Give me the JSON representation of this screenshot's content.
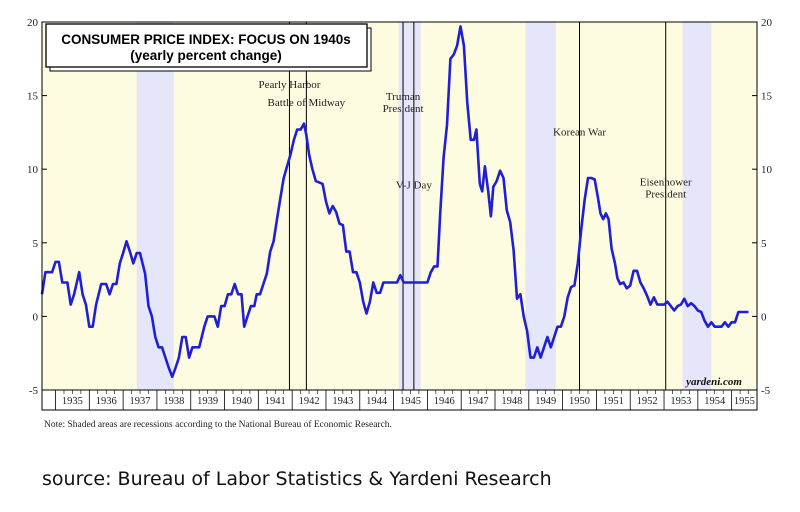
{
  "chart_data": {
    "type": "line",
    "title": "CONSUMER PRICE INDEX: FOCUS ON 1940s",
    "subtitle": "(yearly percent change)",
    "ylim": [
      -5,
      20
    ],
    "yticks": [
      -5,
      0,
      5,
      10,
      15,
      20
    ],
    "xlim": [
      1934.6,
      1955.75
    ],
    "years": [
      "1935",
      "1936",
      "1937",
      "1938",
      "1939",
      "1940",
      "1941",
      "1942",
      "1943",
      "1944",
      "1945",
      "1946",
      "1947",
      "1948",
      "1949",
      "1950",
      "1951",
      "1952",
      "1953",
      "1954",
      "1955"
    ],
    "recessions": [
      [
        1937.4,
        1938.5
      ],
      [
        1945.15,
        1945.8
      ],
      [
        1948.9,
        1949.8
      ],
      [
        1953.55,
        1954.4
      ]
    ],
    "events": [
      {
        "x": 1941.92,
        "lines": [
          "Pearly Harbor"
        ],
        "label_y": 15.5
      },
      {
        "x": 1942.42,
        "lines": [
          "Battle of Midway"
        ],
        "label_y": 14.3
      },
      {
        "x": 1945.28,
        "lines": [
          "Truman",
          "President"
        ],
        "label_y": 14.7
      },
      {
        "x": 1945.6,
        "lines": [
          "V-J Day"
        ],
        "label_y": 8.7
      },
      {
        "x": 1950.5,
        "lines": [
          "Korean War"
        ],
        "label_y": 12.3
      },
      {
        "x": 1953.05,
        "lines": [
          "Eisenhower",
          "President"
        ],
        "label_y": 8.9
      }
    ],
    "series": [
      {
        "color": "#1f1fd6",
        "points": [
          [
            1934.6,
            1.5
          ],
          [
            1934.7,
            3.0
          ],
          [
            1934.9,
            3.0
          ],
          [
            1935.0,
            3.7
          ],
          [
            1935.1,
            3.7
          ],
          [
            1935.2,
            2.3
          ],
          [
            1935.35,
            2.3
          ],
          [
            1935.45,
            0.8
          ],
          [
            1935.55,
            1.5
          ],
          [
            1935.7,
            3.0
          ],
          [
            1935.8,
            1.5
          ],
          [
            1935.9,
            0.8
          ],
          [
            1936.0,
            -0.7
          ],
          [
            1936.1,
            -0.7
          ],
          [
            1936.2,
            0.8
          ],
          [
            1936.35,
            2.2
          ],
          [
            1936.5,
            2.2
          ],
          [
            1936.6,
            1.5
          ],
          [
            1936.7,
            2.2
          ],
          [
            1936.8,
            2.2
          ],
          [
            1936.9,
            3.6
          ],
          [
            1937.0,
            4.3
          ],
          [
            1937.1,
            5.1
          ],
          [
            1937.2,
            4.4
          ],
          [
            1937.3,
            3.6
          ],
          [
            1937.4,
            4.3
          ],
          [
            1937.5,
            4.3
          ],
          [
            1937.65,
            2.9
          ],
          [
            1937.75,
            0.7
          ],
          [
            1937.85,
            0.0
          ],
          [
            1937.95,
            -1.4
          ],
          [
            1938.05,
            -2.1
          ],
          [
            1938.15,
            -2.1
          ],
          [
            1938.25,
            -2.8
          ],
          [
            1938.35,
            -3.5
          ],
          [
            1938.45,
            -4.1
          ],
          [
            1938.55,
            -3.5
          ],
          [
            1938.65,
            -2.8
          ],
          [
            1938.75,
            -1.4
          ],
          [
            1938.85,
            -1.4
          ],
          [
            1938.95,
            -2.8
          ],
          [
            1939.05,
            -2.1
          ],
          [
            1939.15,
            -2.1
          ],
          [
            1939.25,
            -2.1
          ],
          [
            1939.4,
            -0.7
          ],
          [
            1939.5,
            0.0
          ],
          [
            1939.6,
            0.0
          ],
          [
            1939.7,
            0.0
          ],
          [
            1939.8,
            -0.7
          ],
          [
            1939.9,
            0.7
          ],
          [
            1940.0,
            0.7
          ],
          [
            1940.1,
            1.5
          ],
          [
            1940.2,
            1.5
          ],
          [
            1940.3,
            2.2
          ],
          [
            1940.4,
            1.5
          ],
          [
            1940.5,
            1.5
          ],
          [
            1940.58,
            -0.7
          ],
          [
            1940.68,
            0.0
          ],
          [
            1940.78,
            0.7
          ],
          [
            1940.88,
            0.7
          ],
          [
            1940.95,
            1.5
          ],
          [
            1941.05,
            1.5
          ],
          [
            1941.15,
            2.2
          ],
          [
            1941.25,
            2.9
          ],
          [
            1941.35,
            4.4
          ],
          [
            1941.45,
            5.1
          ],
          [
            1941.55,
            6.6
          ],
          [
            1941.65,
            8.0
          ],
          [
            1941.75,
            9.4
          ],
          [
            1941.85,
            10.2
          ],
          [
            1941.95,
            11.0
          ],
          [
            1942.05,
            12.0
          ],
          [
            1942.15,
            12.7
          ],
          [
            1942.25,
            12.7
          ],
          [
            1942.35,
            13.1
          ],
          [
            1942.42,
            12.3
          ],
          [
            1942.5,
            11.0
          ],
          [
            1942.6,
            10.0
          ],
          [
            1942.7,
            9.2
          ],
          [
            1942.8,
            9.1
          ],
          [
            1942.9,
            9.0
          ],
          [
            1943.0,
            7.8
          ],
          [
            1943.1,
            7.0
          ],
          [
            1943.2,
            7.5
          ],
          [
            1943.3,
            7.1
          ],
          [
            1943.4,
            6.3
          ],
          [
            1943.5,
            6.2
          ],
          [
            1943.6,
            4.4
          ],
          [
            1943.7,
            4.4
          ],
          [
            1943.8,
            3.0
          ],
          [
            1943.9,
            3.0
          ],
          [
            1944.0,
            2.3
          ],
          [
            1944.1,
            1.0
          ],
          [
            1944.2,
            0.2
          ],
          [
            1944.3,
            1.0
          ],
          [
            1944.4,
            2.3
          ],
          [
            1944.5,
            1.6
          ],
          [
            1944.6,
            1.6
          ],
          [
            1944.7,
            2.3
          ],
          [
            1944.8,
            2.3
          ],
          [
            1944.9,
            2.3
          ],
          [
            1945.0,
            2.3
          ],
          [
            1945.1,
            2.3
          ],
          [
            1945.2,
            2.8
          ],
          [
            1945.3,
            2.3
          ],
          [
            1945.5,
            2.3
          ],
          [
            1945.65,
            2.3
          ],
          [
            1945.8,
            2.3
          ],
          [
            1945.9,
            2.3
          ],
          [
            1946.0,
            2.3
          ],
          [
            1946.1,
            3.0
          ],
          [
            1946.2,
            3.4
          ],
          [
            1946.3,
            3.4
          ],
          [
            1946.38,
            7.0
          ],
          [
            1946.48,
            10.8
          ],
          [
            1946.58,
            13.0
          ],
          [
            1946.68,
            17.5
          ],
          [
            1946.78,
            17.8
          ],
          [
            1946.88,
            18.4
          ],
          [
            1946.98,
            19.7
          ],
          [
            1947.08,
            18.4
          ],
          [
            1947.18,
            14.5
          ],
          [
            1947.28,
            12.0
          ],
          [
            1947.38,
            12.0
          ],
          [
            1947.45,
            12.7
          ],
          [
            1947.55,
            9.0
          ],
          [
            1947.62,
            8.5
          ],
          [
            1947.7,
            10.2
          ],
          [
            1947.8,
            8.5
          ],
          [
            1947.88,
            6.8
          ],
          [
            1947.95,
            8.8
          ],
          [
            1948.05,
            9.2
          ],
          [
            1948.15,
            9.9
          ],
          [
            1948.25,
            9.4
          ],
          [
            1948.35,
            7.2
          ],
          [
            1948.45,
            6.4
          ],
          [
            1948.55,
            4.5
          ],
          [
            1948.65,
            1.2
          ],
          [
            1948.75,
            1.5
          ],
          [
            1948.85,
            0.0
          ],
          [
            1948.95,
            -1.0
          ],
          [
            1949.05,
            -2.8
          ],
          [
            1949.15,
            -2.8
          ],
          [
            1949.25,
            -2.1
          ],
          [
            1949.35,
            -2.8
          ],
          [
            1949.45,
            -2.1
          ],
          [
            1949.55,
            -1.4
          ],
          [
            1949.65,
            -2.1
          ],
          [
            1949.75,
            -1.4
          ],
          [
            1949.85,
            -0.7
          ],
          [
            1949.95,
            -0.7
          ],
          [
            1950.05,
            0.0
          ],
          [
            1950.15,
            1.3
          ],
          [
            1950.25,
            2.0
          ],
          [
            1950.35,
            2.1
          ],
          [
            1950.45,
            3.6
          ],
          [
            1950.55,
            5.9
          ],
          [
            1950.65,
            7.9
          ],
          [
            1950.75,
            9.4
          ],
          [
            1950.85,
            9.4
          ],
          [
            1950.95,
            9.3
          ],
          [
            1951.05,
            8.0
          ],
          [
            1951.12,
            7.0
          ],
          [
            1951.2,
            6.6
          ],
          [
            1951.28,
            7.0
          ],
          [
            1951.36,
            6.6
          ],
          [
            1951.45,
            4.6
          ],
          [
            1951.55,
            3.6
          ],
          [
            1951.62,
            2.6
          ],
          [
            1951.7,
            2.2
          ],
          [
            1951.8,
            2.3
          ],
          [
            1951.9,
            1.9
          ],
          [
            1952.0,
            2.1
          ],
          [
            1952.1,
            3.1
          ],
          [
            1952.2,
            3.1
          ],
          [
            1952.3,
            2.3
          ],
          [
            1952.4,
            1.9
          ],
          [
            1952.5,
            1.4
          ],
          [
            1952.6,
            0.8
          ],
          [
            1952.7,
            1.3
          ],
          [
            1952.8,
            0.8
          ],
          [
            1952.9,
            0.8
          ],
          [
            1953.0,
            0.8
          ],
          [
            1953.1,
            1.0
          ],
          [
            1953.2,
            0.7
          ],
          [
            1953.3,
            0.4
          ],
          [
            1953.4,
            0.7
          ],
          [
            1953.5,
            0.8
          ],
          [
            1953.6,
            1.2
          ],
          [
            1953.7,
            0.7
          ],
          [
            1953.8,
            0.9
          ],
          [
            1953.9,
            0.7
          ],
          [
            1954.0,
            0.4
          ],
          [
            1954.1,
            0.3
          ],
          [
            1954.2,
            -0.3
          ],
          [
            1954.3,
            -0.7
          ],
          [
            1954.4,
            -0.4
          ],
          [
            1954.5,
            -0.7
          ],
          [
            1954.6,
            -0.7
          ],
          [
            1954.7,
            -0.7
          ],
          [
            1954.8,
            -0.4
          ],
          [
            1954.9,
            -0.7
          ],
          [
            1955.0,
            -0.4
          ],
          [
            1955.1,
            -0.4
          ],
          [
            1955.2,
            0.3
          ],
          [
            1955.3,
            0.3
          ],
          [
            1955.5,
            0.3
          ]
        ]
      }
    ],
    "watermark": "yardeni.com"
  },
  "note": "Note: Shaded areas are recessions according to the National Bureau of Economic Research.",
  "source": "source: Bureau of Labor Statistics & Yardeni Research",
  "colors": {
    "background": "#fdfbe0",
    "recession": "#e6e6fb",
    "line": "#1f1fd6"
  }
}
